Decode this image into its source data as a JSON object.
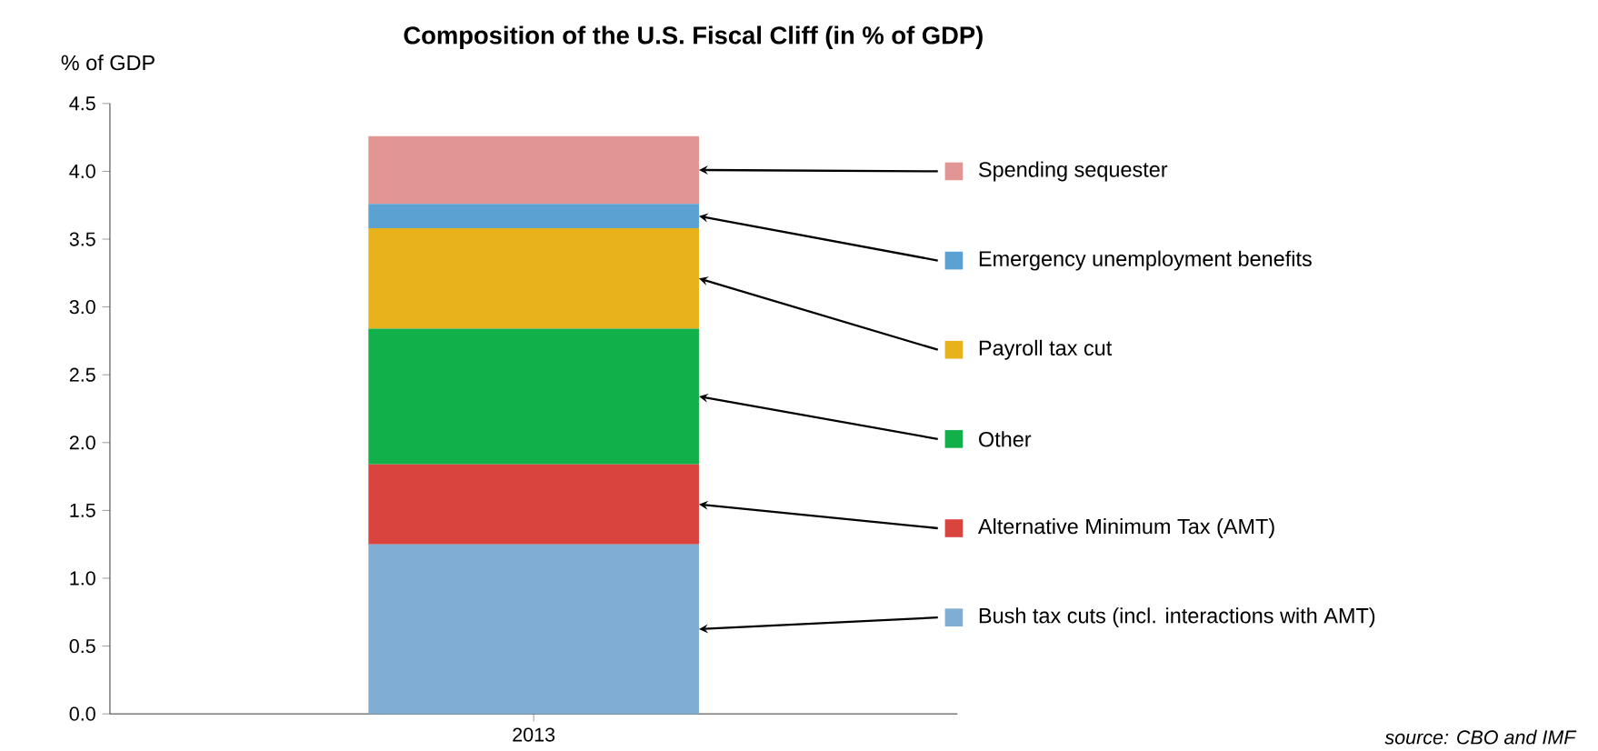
{
  "chart_data": {
    "type": "bar",
    "title": "Composition of the U.S. Fiscal Cliff (in % of GDP)",
    "ylabel": "% of GDP",
    "categories": [
      "2013"
    ],
    "stacked": true,
    "legend": "right",
    "series": [
      {
        "name": "Bush tax cuts (incl. interactions with AMT)",
        "color": "#7fadd3",
        "values": [
          1.25
        ]
      },
      {
        "name": "Alternative Minimum Tax (AMT)",
        "color": "#d9443f",
        "values": [
          0.59
        ]
      },
      {
        "name": "Other",
        "color": "#12b04a",
        "values": [
          1.0
        ]
      },
      {
        "name": "Payroll tax cut",
        "color": "#e8b21c",
        "values": [
          0.74
        ]
      },
      {
        "name": "Emergency unemployment benefits",
        "color": "#5ba2d2",
        "values": [
          0.18
        ]
      },
      {
        "name": "Spending sequester",
        "color": "#e29693",
        "values": [
          0.5
        ]
      }
    ],
    "ylim": [
      0,
      4.5
    ],
    "yticks": [
      {
        "value": 0,
        "label": "0.0"
      },
      {
        "value": 0.5,
        "label": "0.5"
      },
      {
        "value": 1,
        "label": "1.0"
      },
      {
        "value": 1.5,
        "label": "1.5"
      },
      {
        "value": 2,
        "label": "2.0"
      },
      {
        "value": 2.5,
        "label": "2.5"
      },
      {
        "value": 3,
        "label": "3.0"
      },
      {
        "value": 3.5,
        "label": "3.5"
      },
      {
        "value": 4,
        "label": "4.0"
      },
      {
        "value": 4.5,
        "label": "4.5"
      }
    ],
    "annotations": [
      "source: CBO and IMF"
    ]
  }
}
